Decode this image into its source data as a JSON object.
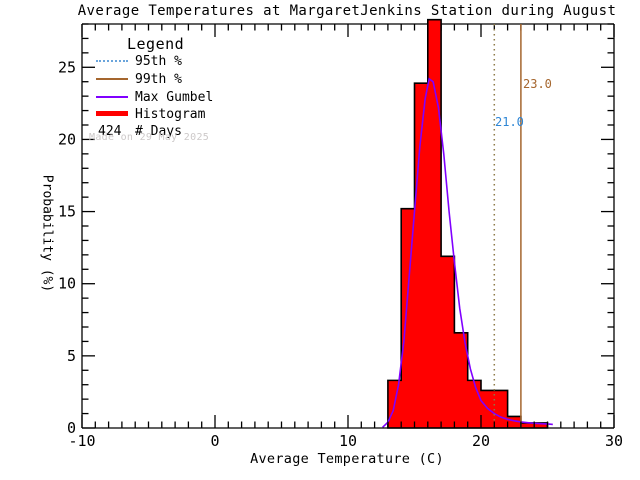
{
  "title": "Average Temperatures at MargaretJenkins Station during August",
  "legend": {
    "title": "Legend",
    "items": [
      {
        "label": "95th %",
        "style": "dotted",
        "color": "#6aa5dc"
      },
      {
        "label": "99th %",
        "style": "solid",
        "color": "#a5662e"
      },
      {
        "label": "Max Gumbel",
        "style": "solid",
        "color": "#8000ff"
      },
      {
        "label": "Histogram",
        "style": "thick",
        "color": "#ff0000"
      }
    ],
    "days_value": "424",
    "days_label": "# Days",
    "made_on": "Made on 29 May 2025"
  },
  "annotations": {
    "p95_label": "21.0",
    "p95_color": "#2e86d5",
    "p99_label": "23.0",
    "p99_color": "#a5662e"
  },
  "chart_data": {
    "type": "bar",
    "subtype": "histogram-with-fit",
    "title": "Average Temperatures at MargaretJenkins Station during August",
    "xlabel": "Average Temperature (C)",
    "ylabel": "Probability (%)",
    "xlim": [
      -10,
      30
    ],
    "ylim": [
      0,
      28
    ],
    "x_major_ticks": [
      -10,
      0,
      10,
      20,
      30
    ],
    "x_minor_step": 1,
    "y_major_ticks": [
      0,
      5,
      10,
      15,
      20,
      25
    ],
    "y_minor_step": 1,
    "grid": false,
    "n_days": 424,
    "histogram": {
      "bin_start": 13,
      "bin_width": 1,
      "bin_edges": [
        13,
        14,
        15,
        16,
        17,
        18,
        19,
        20,
        21,
        22,
        23,
        24,
        25
      ],
      "percent": [
        3.3,
        15.2,
        23.9,
        28.3,
        11.9,
        6.6,
        3.3,
        2.6,
        2.6,
        0.8,
        0.35,
        0.35
      ]
    },
    "gumbel_fit": {
      "name": "Max Gumbel",
      "x": [
        12.6,
        13,
        13.4,
        13.8,
        14.2,
        14.6,
        15,
        15.4,
        15.8,
        16.1,
        16.4,
        16.8,
        17.2,
        17.6,
        18,
        18.4,
        18.8,
        19.2,
        19.6,
        20,
        20.5,
        21,
        21.5,
        22,
        22.5,
        23,
        23.5,
        24,
        24.5,
        25,
        25.4
      ],
      "y": [
        0.05,
        0.4,
        1.2,
        3.0,
        6.0,
        10.5,
        15.0,
        19.5,
        22.8,
        24.2,
        24.0,
        22.2,
        19.0,
        15.0,
        11.5,
        8.3,
        5.9,
        4.1,
        2.8,
        1.9,
        1.35,
        1.0,
        0.75,
        0.6,
        0.5,
        0.42,
        0.37,
        0.33,
        0.3,
        0.28,
        0.25
      ]
    },
    "percentile_95": 21.0,
    "percentile_99": 23.0,
    "colors": {
      "hist_fill": "#ff0000",
      "hist_edge": "#000000",
      "curve": "#8000ff",
      "p95_line": "#8c7a48",
      "p99_line": "#a5662e",
      "axis": "#000000"
    }
  }
}
